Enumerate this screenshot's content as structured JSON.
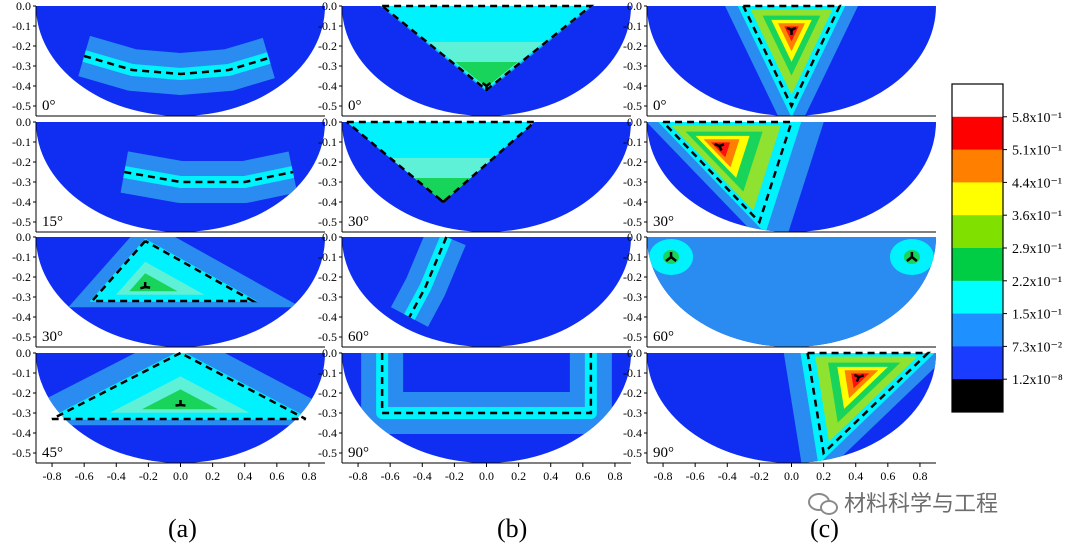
{
  "figure": {
    "x_ticks": [
      "-0.8",
      "-0.6",
      "-0.4",
      "-0.2",
      "0.0",
      "0.2",
      "0.4",
      "0.6",
      "0.8"
    ],
    "y_ticks": [
      "0.0",
      "-0.1",
      "-0.2",
      "-0.3",
      "-0.4",
      "-0.5"
    ],
    "panel_letters": [
      "(a)",
      "(b)",
      "(c)"
    ],
    "columns": [
      {
        "letter": "(a)",
        "angles": [
          "0°",
          "15°",
          "30°",
          "45°"
        ]
      },
      {
        "letter": "(b)",
        "angles": [
          "0°",
          "30°",
          "60°",
          "90°"
        ]
      },
      {
        "letter": "(c)",
        "angles": [
          "0°",
          "30°",
          "60°",
          "90°"
        ]
      }
    ],
    "colorbar": {
      "labels": [
        "5.8x10⁻¹",
        "5.1x10⁻¹",
        "4.4x10⁻¹",
        "3.6x10⁻¹",
        "2.9x10⁻¹",
        "2.2x10⁻¹",
        "1.5x10⁻¹",
        "7.3x10⁻²",
        "1.2x10⁻⁸"
      ],
      "colors": [
        "#ffffff",
        "#ff0000",
        "#ff8000",
        "#ffff00",
        "#80e000",
        "#00cc44",
        "#00ffff",
        "#1e90ff",
        "#1a3cff",
        "#000000"
      ]
    },
    "watermark": "材料科学与工程"
  },
  "chart_data": {
    "type": "heatmap",
    "x_range": [
      -0.9,
      0.9
    ],
    "y_range": [
      -0.55,
      0.0
    ],
    "domain": "lower half-ellipse",
    "levels": [
      1.2e-08,
      0.073,
      0.15,
      0.22,
      0.29,
      0.36,
      0.44,
      0.51,
      0.58
    ],
    "panels": [
      {
        "column": "(a)",
        "angle": "0°",
        "type": "band",
        "points": [
          [
            -0.6,
            -0.25
          ],
          [
            -0.3,
            -0.32
          ],
          [
            0.0,
            -0.34
          ],
          [
            0.3,
            -0.32
          ],
          [
            0.55,
            -0.26
          ]
        ]
      },
      {
        "column": "(a)",
        "angle": "15°",
        "type": "band",
        "points": [
          [
            -0.35,
            -0.25
          ],
          [
            0.0,
            -0.3
          ],
          [
            0.4,
            -0.3
          ],
          [
            0.7,
            -0.25
          ]
        ]
      },
      {
        "column": "(a)",
        "angle": "30°",
        "type": "triangle",
        "center": [
          -0.22,
          -0.25
        ],
        "vertices": [
          [
            -0.22,
            -0.02
          ],
          [
            -0.55,
            -0.32
          ],
          [
            0.45,
            -0.32
          ]
        ]
      },
      {
        "column": "(a)",
        "angle": "45°",
        "type": "triangle",
        "center": [
          0.0,
          -0.26
        ],
        "vertices": [
          [
            0.0,
            0.0
          ],
          [
            -0.8,
            -0.33
          ],
          [
            0.78,
            -0.33
          ]
        ]
      },
      {
        "column": "(b)",
        "angle": "0°",
        "type": "triangle",
        "center": [
          0.0,
          -0.4
        ],
        "vertices": [
          [
            -0.65,
            0.0
          ],
          [
            0.65,
            0.0
          ],
          [
            0.0,
            -0.42
          ]
        ]
      },
      {
        "column": "(b)",
        "angle": "30°",
        "type": "triangle",
        "center": [
          -0.27,
          -0.4
        ],
        "vertices": [
          [
            -0.87,
            0.0
          ],
          [
            0.3,
            0.0
          ],
          [
            -0.27,
            -0.4
          ]
        ]
      },
      {
        "column": "(b)",
        "angle": "60°",
        "type": "band",
        "points": [
          [
            -0.25,
            0.0
          ],
          [
            -0.38,
            -0.25
          ],
          [
            -0.48,
            -0.4
          ]
        ]
      },
      {
        "column": "(b)",
        "angle": "90°",
        "type": "band",
        "points": [
          [
            -0.65,
            0.0
          ],
          [
            -0.65,
            -0.3
          ],
          [
            0.65,
            -0.3
          ],
          [
            0.65,
            0.0
          ]
        ]
      },
      {
        "column": "(c)",
        "angle": "0°",
        "type": "triangle",
        "center": [
          0.0,
          -0.12
        ],
        "vertices": [
          [
            -0.3,
            0.0
          ],
          [
            0.3,
            0.0
          ],
          [
            0.0,
            -0.5
          ]
        ]
      },
      {
        "column": "(c)",
        "angle": "30°",
        "type": "triangle",
        "center": [
          -0.45,
          -0.12
        ],
        "vertices": [
          [
            -0.8,
            0.0
          ],
          [
            0.0,
            0.0
          ],
          [
            -0.2,
            -0.5
          ]
        ]
      },
      {
        "column": "(c)",
        "angle": "60°",
        "type": "corners",
        "centers": [
          [
            -0.75,
            -0.1
          ],
          [
            0.75,
            -0.1
          ]
        ]
      },
      {
        "column": "(c)",
        "angle": "90°",
        "type": "triangle",
        "center": [
          0.42,
          -0.12
        ],
        "vertices": [
          [
            0.1,
            0.0
          ],
          [
            0.85,
            0.0
          ],
          [
            0.2,
            -0.5
          ]
        ]
      }
    ]
  }
}
